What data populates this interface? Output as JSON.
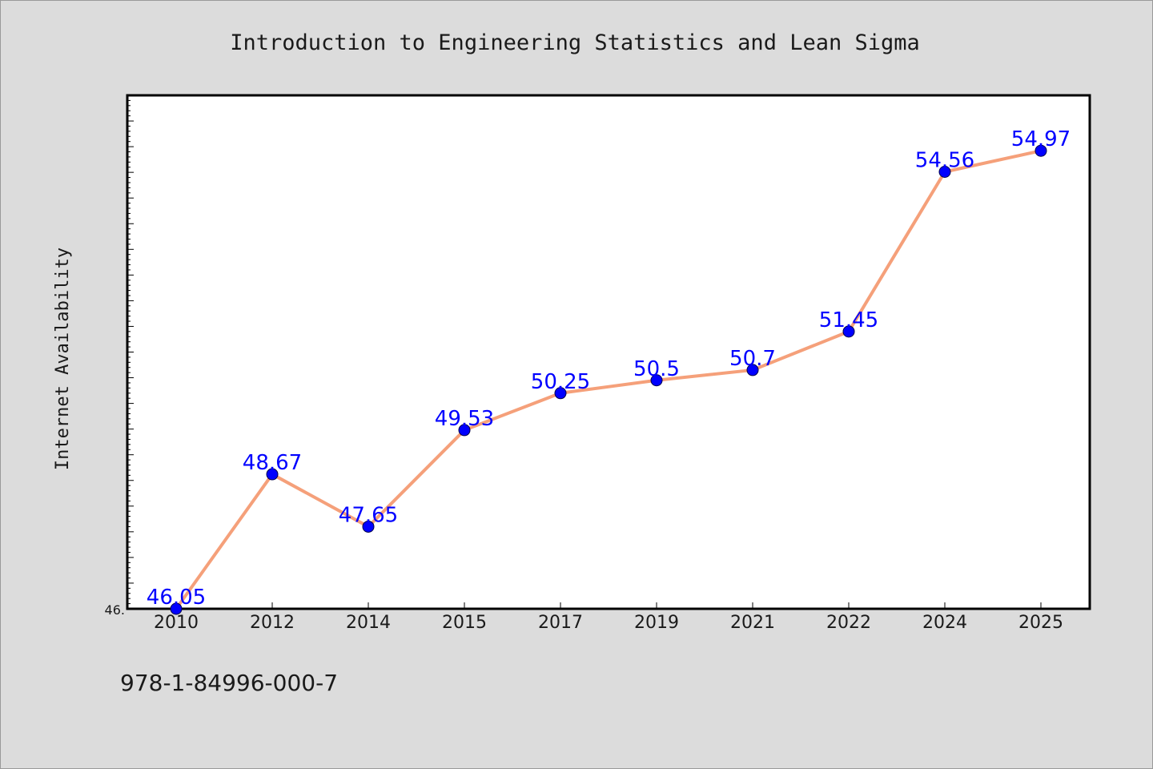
{
  "chart_data": {
    "type": "line",
    "title": "Introduction to Engineering Statistics and Lean Sigma",
    "xlabel": "",
    "ylabel": "Internet Availability",
    "categories": [
      "2010",
      "2012",
      "2014",
      "2015",
      "2017",
      "2019",
      "2021",
      "2022",
      "2024",
      "2025"
    ],
    "series": [
      {
        "values": [
          46.05,
          48.67,
          47.65,
          49.53,
          50.25,
          50.5,
          50.7,
          51.45,
          54.56,
          54.97
        ],
        "data_labels": [
          "46.05",
          "48.67",
          "47.65",
          "49.53",
          "50.25",
          "50.5",
          "50.7",
          "51.45",
          "54.56",
          "54.97"
        ]
      }
    ],
    "ylim": [
      46.05,
      56.05
    ],
    "y_tick_labels": [
      "46."
    ],
    "grid": false,
    "legend": "none",
    "colors": {
      "line": "#f5a07a",
      "marker": "#0000ff",
      "label": "#0000ff",
      "background": "#dcdcdc",
      "plot_area": "#ffffff"
    }
  },
  "footer": {
    "text": "978-1-84996-000-7"
  }
}
